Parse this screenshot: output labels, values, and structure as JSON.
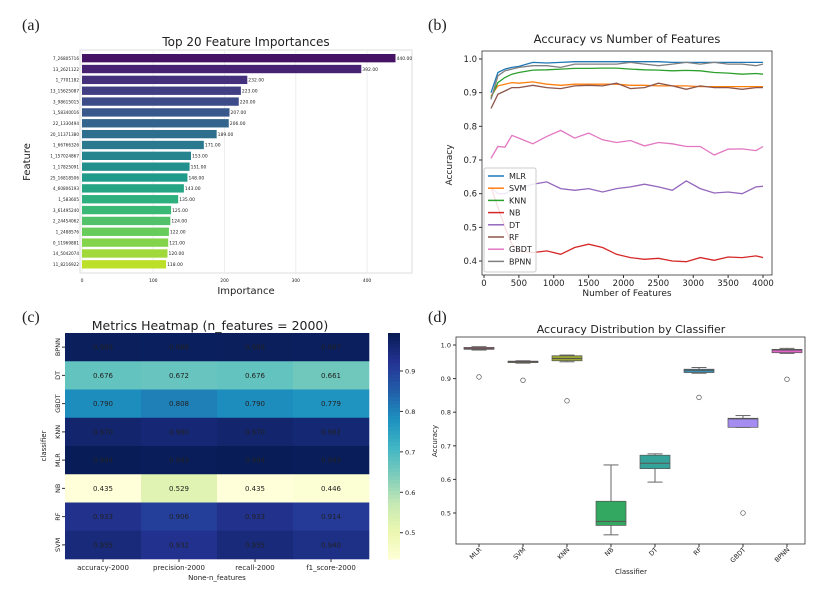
{
  "panels": {
    "a": "(a)",
    "b": "(b)",
    "c": "(c)",
    "d": "(d)"
  },
  "chart_data": [
    {
      "id": "a",
      "type": "bar",
      "orientation": "horizontal",
      "title": "Top 20 Feature Importances",
      "xlabel": "Importance",
      "ylabel": "Feature",
      "xlim": [
        0,
        460
      ],
      "xticks": [
        0,
        100,
        200,
        300,
        400
      ],
      "colormap": "viridis",
      "categories": [
        "7_26805716",
        "13_2621122",
        "1_7701182",
        "13_15625087",
        "3_98615015",
        "1_58340016",
        "22_1330494",
        "20_11371380",
        "1_66766326",
        "1_157024867",
        "1_17825091",
        "25_16818506",
        "4_60806193",
        "1_583605",
        "3_61495240",
        "2_24454062",
        "1_2488576",
        "0_11969881",
        "14_5042074",
        "11_8216922"
      ],
      "values": [
        440,
        392,
        232,
        223,
        220,
        207,
        206,
        189,
        171,
        153,
        151,
        148,
        143,
        135,
        125,
        124,
        122,
        121,
        120,
        118
      ],
      "data_labels": [
        "440.00",
        "392.00",
        "232.00",
        "223.00",
        "220.00",
        "207.00",
        "206.00",
        "189.00",
        "171.00",
        "153.00",
        "151.00",
        "148.00",
        "143.00",
        "135.00",
        "125.00",
        "124.00",
        "122.00",
        "121.00",
        "120.00",
        "118.00"
      ]
    },
    {
      "id": "b",
      "type": "line",
      "title": "Accuracy vs Number of Features",
      "xlabel": "Number of Features",
      "ylabel": "Accuracy",
      "xlim": [
        -100,
        4150
      ],
      "ylim": [
        0.38,
        1.02
      ],
      "xticks": [
        0,
        500,
        1000,
        1500,
        2000,
        2500,
        3000,
        3500,
        4000
      ],
      "yticks": [
        0.4,
        0.5,
        0.6,
        0.7,
        0.8,
        0.9,
        1.0
      ],
      "legend": "lower-left",
      "x": [
        100,
        200,
        300,
        400,
        500,
        700,
        900,
        1100,
        1300,
        1500,
        1700,
        1900,
        2100,
        2300,
        2500,
        2700,
        2900,
        3100,
        3300,
        3500,
        3700,
        3900,
        4000
      ],
      "series": [
        {
          "name": "MLR",
          "color": "#1f77b4",
          "values": [
            0.9,
            0.96,
            0.97,
            0.975,
            0.978,
            0.99,
            0.988,
            0.99,
            0.992,
            0.992,
            0.992,
            0.992,
            0.992,
            0.992,
            0.992,
            0.99,
            0.99,
            0.99,
            0.99,
            0.99,
            0.99,
            0.99,
            0.99
          ]
        },
        {
          "name": "SVM",
          "color": "#ff7f0e",
          "values": [
            0.89,
            0.92,
            0.925,
            0.93,
            0.928,
            0.932,
            0.925,
            0.922,
            0.925,
            0.925,
            0.925,
            0.925,
            0.922,
            0.922,
            0.92,
            0.92,
            0.92,
            0.918,
            0.918,
            0.918,
            0.918,
            0.918,
            0.918
          ]
        },
        {
          "name": "KNN",
          "color": "#2ca02c",
          "values": [
            0.885,
            0.93,
            0.945,
            0.955,
            0.96,
            0.967,
            0.968,
            0.97,
            0.972,
            0.972,
            0.973,
            0.973,
            0.97,
            0.968,
            0.967,
            0.965,
            0.966,
            0.965,
            0.96,
            0.958,
            0.955,
            0.957,
            0.955
          ]
        },
        {
          "name": "NB",
          "color": "#d62728",
          "values": [
            0.62,
            0.56,
            0.5,
            0.45,
            0.43,
            0.425,
            0.43,
            0.42,
            0.44,
            0.45,
            0.44,
            0.42,
            0.41,
            0.405,
            0.408,
            0.4,
            0.398,
            0.41,
            0.402,
            0.412,
            0.41,
            0.415,
            0.41
          ]
        },
        {
          "name": "DT",
          "color": "#9467bd",
          "values": [
            0.62,
            0.6,
            0.6,
            0.61,
            0.615,
            0.628,
            0.635,
            0.615,
            0.61,
            0.615,
            0.605,
            0.615,
            0.62,
            0.628,
            0.62,
            0.61,
            0.638,
            0.615,
            0.602,
            0.605,
            0.6,
            0.62,
            0.622
          ]
        },
        {
          "name": "RF",
          "color": "#8c564b",
          "values": [
            0.853,
            0.895,
            0.905,
            0.915,
            0.915,
            0.922,
            0.915,
            0.912,
            0.92,
            0.922,
            0.92,
            0.928,
            0.912,
            0.915,
            0.928,
            0.92,
            0.91,
            0.92,
            0.915,
            0.915,
            0.91,
            0.915,
            0.915
          ]
        },
        {
          "name": "GBDT",
          "color": "#e377c2",
          "values": [
            0.705,
            0.74,
            0.738,
            0.773,
            0.765,
            0.748,
            0.77,
            0.788,
            0.765,
            0.78,
            0.76,
            0.752,
            0.758,
            0.742,
            0.752,
            0.748,
            0.74,
            0.74,
            0.715,
            0.732,
            0.733,
            0.728,
            0.74
          ]
        },
        {
          "name": "BPNN",
          "color": "#7f7f7f",
          "values": [
            0.88,
            0.95,
            0.965,
            0.97,
            0.975,
            0.98,
            0.98,
            0.975,
            0.985,
            0.985,
            0.985,
            0.985,
            0.99,
            0.985,
            0.98,
            0.985,
            0.99,
            0.985,
            0.99,
            0.985,
            0.985,
            0.98,
            0.985
          ]
        }
      ]
    },
    {
      "id": "c",
      "type": "heatmap",
      "title": "Metrics Heatmap (n_features = 2000)",
      "xlabel": "None-n_features",
      "ylabel": "classifier",
      "colormap": "YlGnBu",
      "colorbar_range": [
        0.435,
        0.994
      ],
      "colorbar_ticks": [
        "0.5",
        "0.6",
        "0.7",
        "0.8",
        "0.9"
      ],
      "columns": [
        "accuracy-2000",
        "precision-2000",
        "recall-2000",
        "f1_score-2000"
      ],
      "rows": [
        "BPNN",
        "DT",
        "GBDT",
        "KNN",
        "MLR",
        "NB",
        "RF",
        "SVM"
      ],
      "values": [
        [
          0.989,
          0.988,
          0.989,
          0.987
        ],
        [
          0.676,
          0.672,
          0.676,
          0.661
        ],
        [
          0.79,
          0.808,
          0.79,
          0.779
        ],
        [
          0.97,
          0.96,
          0.97,
          0.962
        ],
        [
          0.994,
          0.993,
          0.994,
          0.993
        ],
        [
          0.435,
          0.529,
          0.435,
          0.446
        ],
        [
          0.933,
          0.906,
          0.933,
          0.914
        ],
        [
          0.955,
          0.932,
          0.955,
          0.94
        ]
      ]
    },
    {
      "id": "d",
      "type": "box",
      "title": "Accuracy Distribution by Classifier",
      "xlabel": "Classifier",
      "ylabel": "Accuracy",
      "ylim": [
        0.424,
        1.024
      ],
      "yticks": [
        0.5,
        0.6,
        0.7,
        0.8,
        0.9,
        1.0
      ],
      "categories": [
        "MLR",
        "SVM",
        "KNN",
        "NB",
        "DT",
        "RF",
        "GBDT",
        "BPNN"
      ],
      "boxes": [
        {
          "whislo": 0.985,
          "q1": 0.987,
          "med": 0.99,
          "q3": 0.993,
          "whishi": 0.995,
          "outliers": [
            0.905
          ],
          "color": "#e8708a"
        },
        {
          "whislo": 0.946,
          "q1": 0.948,
          "med": 0.95,
          "q3": 0.952,
          "whishi": 0.953,
          "outliers": [
            0.895
          ],
          "color": "#c08a4a"
        },
        {
          "whislo": 0.95,
          "q1": 0.953,
          "med": 0.96,
          "q3": 0.968,
          "whishi": 0.97,
          "outliers": [
            0.834
          ],
          "color": "#9aa532"
        },
        {
          "whislo": 0.435,
          "q1": 0.463,
          "med": 0.475,
          "q3": 0.535,
          "whishi": 0.643,
          "outliers": [],
          "color": "#33a860"
        },
        {
          "whislo": 0.592,
          "q1": 0.632,
          "med": 0.648,
          "q3": 0.672,
          "whishi": 0.676,
          "outliers": [],
          "color": "#36a39a"
        },
        {
          "whislo": 0.916,
          "q1": 0.918,
          "med": 0.925,
          "q3": 0.928,
          "whishi": 0.933,
          "outliers": [
            0.844
          ],
          "color": "#3a8fb0"
        },
        {
          "whislo": 0.755,
          "q1": 0.755,
          "med": 0.78,
          "q3": 0.782,
          "whishi": 0.79,
          "outliers": [
            0.5
          ],
          "color": "#a58cf0"
        },
        {
          "whislo": 0.975,
          "q1": 0.977,
          "med": 0.985,
          "q3": 0.987,
          "whishi": 0.99,
          "outliers": [
            0.898
          ],
          "color": "#e064c8"
        }
      ]
    }
  ]
}
